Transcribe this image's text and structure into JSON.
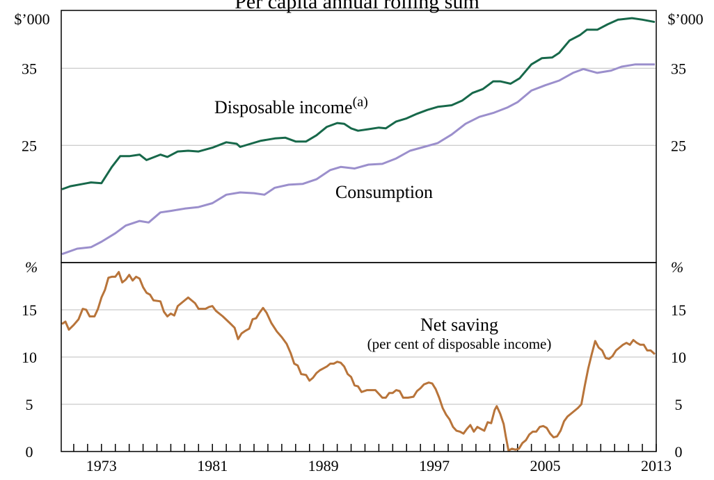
{
  "chart_data": [
    {
      "type": "line",
      "title": "Per capita annual rolling sum",
      "y_axis_label": "$’000",
      "xlim": [
        1970.1,
        2013
      ],
      "ylim": [
        9.8,
        42.5
      ],
      "yticks": [
        25,
        35
      ],
      "grid": true,
      "series": [
        {
          "name": "Disposable income",
          "name_superscript": "(a)",
          "color": "#17684a",
          "x": [
            1970.15,
            1970.75,
            1971.65,
            1972.25,
            1973.0,
            1973.75,
            1974.35,
            1975.0,
            1975.75,
            1976.25,
            1977.25,
            1977.75,
            1978.5,
            1979.25,
            1980.0,
            1981.0,
            1982.0,
            1982.75,
            1983.0,
            1983.75,
            1984.5,
            1985.5,
            1986.25,
            1987.0,
            1987.75,
            1988.5,
            1989.25,
            1990.0,
            1990.5,
            1991.0,
            1991.5,
            1992.25,
            1993.0,
            1993.5,
            1994.25,
            1995.0,
            1995.75,
            1996.5,
            1997.25,
            1998.25,
            1999.0,
            1999.75,
            2000.5,
            2001.25,
            2001.75,
            2002.5,
            2003.15,
            2004.0,
            2004.75,
            2005.5,
            2006.0,
            2006.75,
            2007.5,
            2008.0,
            2008.75,
            2009.5,
            2010.25,
            2011.25,
            2012.0,
            2012.9
          ],
          "values": [
            19.3,
            19.7,
            20.0,
            20.2,
            20.1,
            22.2,
            23.6,
            23.6,
            23.8,
            23.1,
            23.8,
            23.5,
            24.2,
            24.3,
            24.2,
            24.7,
            25.4,
            25.2,
            24.8,
            25.2,
            25.6,
            25.9,
            26.0,
            25.5,
            25.5,
            26.3,
            27.4,
            27.9,
            27.8,
            27.2,
            26.9,
            27.1,
            27.3,
            27.2,
            28.1,
            28.5,
            29.1,
            29.6,
            30.0,
            30.2,
            30.8,
            31.8,
            32.3,
            33.3,
            33.3,
            33.0,
            33.7,
            35.5,
            36.3,
            36.4,
            37.0,
            38.6,
            39.3,
            40.0,
            40.0,
            40.7,
            41.3,
            41.5,
            41.3,
            41.0
          ]
        },
        {
          "name": "Consumption",
          "color": "#9b8fcc",
          "x": [
            1970.15,
            1971.25,
            1972.25,
            1973.0,
            1974.0,
            1974.75,
            1975.75,
            1976.4,
            1977.25,
            1978.0,
            1979.0,
            1980.0,
            1981.0,
            1982.0,
            1983.0,
            1984.0,
            1984.75,
            1985.5,
            1986.5,
            1987.5,
            1988.5,
            1989.5,
            1990.25,
            1991.25,
            1992.25,
            1993.25,
            1994.25,
            1995.25,
            1996.25,
            1997.25,
            1998.25,
            1999.25,
            2000.25,
            2001.25,
            2002.25,
            2003.0,
            2004.0,
            2005.0,
            2006.0,
            2007.0,
            2007.75,
            2008.75,
            2009.75,
            2010.5,
            2011.5,
            2012.9
          ],
          "values": [
            10.9,
            11.6,
            11.8,
            12.5,
            13.6,
            14.6,
            15.2,
            15.0,
            16.3,
            16.5,
            16.8,
            17.0,
            17.5,
            18.6,
            18.9,
            18.8,
            18.6,
            19.5,
            19.9,
            20.0,
            20.6,
            21.8,
            22.2,
            22.0,
            22.5,
            22.6,
            23.3,
            24.3,
            24.8,
            25.3,
            26.4,
            27.8,
            28.7,
            29.2,
            29.9,
            30.6,
            32.1,
            32.8,
            33.4,
            34.4,
            34.9,
            34.4,
            34.7,
            35.2,
            35.5,
            35.5
          ]
        }
      ]
    },
    {
      "type": "line",
      "y_axis_label": "%",
      "xlim": [
        1970.1,
        2013
      ],
      "ylim": [
        0,
        20
      ],
      "yticks": [
        0,
        5,
        10,
        15
      ],
      "grid": true,
      "xticks": [
        1973,
        1981,
        1989,
        1997,
        2005,
        2013
      ],
      "xminorticks": [
        1971,
        1972,
        1974,
        1975,
        1976,
        1977,
        1978,
        1979,
        1980,
        1982,
        1983,
        1984,
        1985,
        1986,
        1987,
        1988,
        1990,
        1991,
        1992,
        1993,
        1994,
        1995,
        1996,
        1998,
        1999,
        2000,
        2001,
        2002,
        2003,
        2004,
        2006,
        2007,
        2008,
        2009,
        2010,
        2011,
        2012
      ],
      "series": [
        {
          "name": "Net saving",
          "subtitle": "(per cent of disposable income)",
          "color": "#b8743a",
          "x": [
            1970.15,
            1970.4,
            1970.65,
            1971.0,
            1971.35,
            1971.65,
            1971.9,
            1972.15,
            1972.5,
            1972.75,
            1973.0,
            1973.25,
            1973.5,
            1973.75,
            1974.0,
            1974.25,
            1974.5,
            1974.75,
            1975.0,
            1975.25,
            1975.5,
            1975.75,
            1976.0,
            1976.25,
            1976.5,
            1976.75,
            1977.25,
            1977.5,
            1977.75,
            1978.0,
            1978.25,
            1978.5,
            1978.75,
            1979.0,
            1979.25,
            1979.5,
            1979.75,
            1980.0,
            1980.5,
            1980.75,
            1981.0,
            1981.25,
            1981.75,
            1982.25,
            1982.6,
            1982.85,
            1983.1,
            1983.4,
            1983.65,
            1983.9,
            1984.15,
            1984.4,
            1984.65,
            1984.9,
            1985.25,
            1985.65,
            1986.0,
            1986.35,
            1986.65,
            1986.9,
            1987.15,
            1987.4,
            1987.75,
            1988.0,
            1988.25,
            1988.5,
            1988.75,
            1989.0,
            1989.25,
            1989.5,
            1989.75,
            1990.0,
            1990.25,
            1990.5,
            1990.75,
            1991.0,
            1991.25,
            1991.5,
            1991.75,
            1992.15,
            1992.5,
            1992.75,
            1993.0,
            1993.25,
            1993.5,
            1993.75,
            1994.0,
            1994.25,
            1994.5,
            1994.75,
            1995.1,
            1995.5,
            1995.75,
            1996.0,
            1996.25,
            1996.6,
            1996.85,
            1997.1,
            1997.35,
            1997.6,
            1997.85,
            1998.1,
            1998.35,
            1998.6,
            1998.85,
            1999.1,
            1999.35,
            1999.6,
            1999.85,
            2000.1,
            2000.35,
            2000.6,
            2000.85,
            2001.1,
            2001.35,
            2001.5,
            2001.75,
            2002.0,
            2002.15,
            2002.35,
            2002.6,
            2002.85,
            2003.1,
            2003.35,
            2003.6,
            2003.85,
            2004.1,
            2004.35,
            2004.6,
            2004.85,
            2005.1,
            2005.35,
            2005.6,
            2005.85,
            2006.1,
            2006.35,
            2006.6,
            2006.85,
            2007.1,
            2007.35,
            2007.6,
            2007.85,
            2008.1,
            2008.35,
            2008.6,
            2008.85,
            2009.1,
            2009.35,
            2009.6,
            2009.85,
            2010.1,
            2010.35,
            2010.6,
            2010.85,
            2011.1,
            2011.35,
            2011.6,
            2011.85,
            2012.1,
            2012.35,
            2012.6,
            2012.9
          ],
          "values": [
            13.5,
            13.75,
            12.9,
            13.4,
            14.0,
            15.1,
            15.0,
            14.3,
            14.3,
            15.1,
            16.3,
            17.1,
            18.4,
            18.5,
            18.5,
            19.0,
            17.9,
            18.2,
            18.7,
            18.1,
            18.5,
            18.3,
            17.4,
            16.8,
            16.6,
            16.0,
            15.9,
            14.8,
            14.3,
            14.6,
            14.4,
            15.4,
            15.7,
            16.0,
            16.3,
            16.0,
            15.7,
            15.1,
            15.1,
            15.3,
            15.4,
            14.9,
            14.3,
            13.6,
            13.1,
            11.9,
            12.5,
            12.8,
            13.0,
            14.0,
            14.1,
            14.7,
            15.2,
            14.7,
            13.6,
            12.7,
            12.1,
            11.4,
            10.4,
            9.3,
            9.1,
            8.2,
            8.1,
            7.5,
            7.8,
            8.3,
            8.6,
            8.8,
            9.0,
            9.3,
            9.3,
            9.5,
            9.4,
            9.0,
            8.2,
            7.9,
            7.0,
            6.9,
            6.3,
            6.5,
            6.5,
            6.5,
            6.1,
            5.7,
            5.7,
            6.2,
            6.2,
            6.5,
            6.4,
            5.7,
            5.7,
            5.8,
            6.4,
            6.7,
            7.1,
            7.3,
            7.2,
            6.6,
            5.7,
            4.6,
            3.9,
            3.4,
            2.6,
            2.2,
            2.1,
            1.9,
            2.4,
            2.8,
            2.1,
            2.6,
            2.4,
            2.2,
            3.1,
            3.0,
            4.4,
            4.8,
            4.0,
            2.9,
            1.6,
            0.1,
            0.3,
            0.2,
            0.3,
            0.9,
            1.2,
            1.8,
            2.1,
            2.1,
            2.6,
            2.7,
            2.5,
            1.9,
            1.5,
            1.6,
            2.2,
            3.2,
            3.7,
            4.0,
            4.3,
            4.6,
            5.0,
            7.0,
            8.8,
            10.3,
            11.7,
            11.0,
            10.7,
            9.9,
            9.8,
            10.1,
            10.7,
            11.0,
            11.3,
            11.5,
            11.3,
            11.8,
            11.5,
            11.3,
            11.3,
            10.7,
            10.7,
            10.3
          ]
        }
      ]
    }
  ]
}
